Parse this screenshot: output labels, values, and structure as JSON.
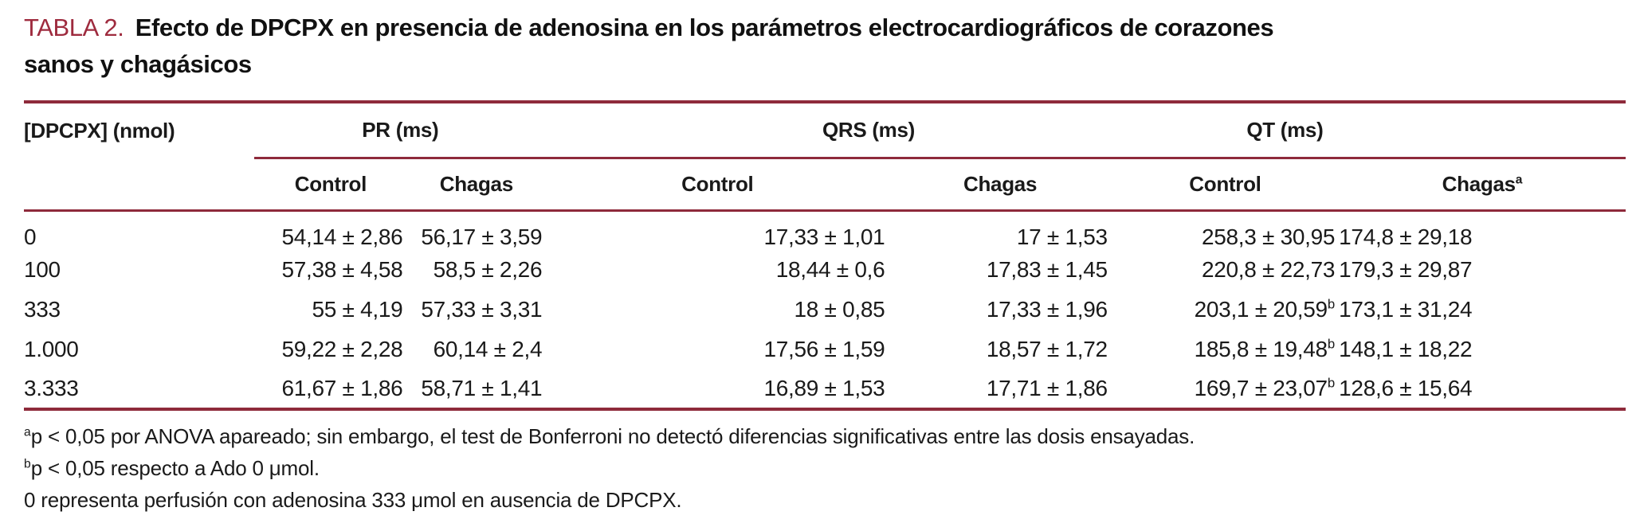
{
  "colors": {
    "accent": "#9E2B3E",
    "rule": "#8E2A3B",
    "text": "#1A1A1A",
    "background": "#FFFFFF"
  },
  "title": {
    "label": "TABLA 2.",
    "line1": "Efecto de DPCPX en presencia de adenosina en los parámetros electrocardiográficos de corazones",
    "line2": "sanos y chagásicos"
  },
  "table": {
    "col0_header": "[DPCPX] (nmol)",
    "groups": {
      "pr": "PR (ms)",
      "qrs": "QRS (ms)",
      "qt": "QT (ms)"
    },
    "subheaders": {
      "pr_control": "Control",
      "pr_chagas": "Chagas",
      "qrs_control": "Control",
      "qrs_chagas": "Chagas",
      "qt_control": "Control",
      "qt_chagas": "Chagas",
      "qt_chagas_sup": "a"
    },
    "rows": [
      {
        "dose": "0",
        "pr_c": "54,14 ± 2,86",
        "pr_ch": "56,17 ± 3,59",
        "qrs_c": "17,33 ± 1,01",
        "qrs_ch": "17 ± 1,53",
        "qt_c": "258,3 ± 30,95",
        "qt_c_sup": "",
        "qt_ch": "174,8 ± 29,18"
      },
      {
        "dose": "100",
        "pr_c": "57,38 ± 4,58",
        "pr_ch": "58,5 ± 2,26",
        "qrs_c": "18,44 ± 0,6",
        "qrs_ch": "17,83 ± 1,45",
        "qt_c": "220,8 ± 22,73",
        "qt_c_sup": "",
        "qt_ch": "179,3 ± 29,87"
      },
      {
        "dose": "333",
        "pr_c": "55 ± 4,19",
        "pr_ch": "57,33 ± 3,31",
        "qrs_c": "18 ± 0,85",
        "qrs_ch": "17,33 ± 1,96",
        "qt_c": "203,1 ± 20,59",
        "qt_c_sup": "b",
        "qt_ch": "173,1 ± 31,24"
      },
      {
        "dose": "1.000",
        "pr_c": "59,22 ± 2,28",
        "pr_ch": "60,14 ± 2,4",
        "qrs_c": "17,56 ± 1,59",
        "qrs_ch": "18,57 ± 1,72",
        "qt_c": "185,8 ± 19,48",
        "qt_c_sup": "b",
        "qt_ch": "148,1 ± 18,22"
      },
      {
        "dose": "3.333",
        "pr_c": "61,67 ± 1,86",
        "pr_ch": "58,71 ± 1,41",
        "qrs_c": "16,89 ± 1,53",
        "qrs_ch": "17,71 ± 1,86",
        "qt_c": "169,7 ± 23,07",
        "qt_c_sup": "b",
        "qt_ch": "128,6 ± 15,64"
      }
    ]
  },
  "footnotes": [
    {
      "sup": "a",
      "text": "p < 0,05 por ANOVA apareado; sin embargo, el test de Bonferroni no detectó diferencias significativas entre las dosis ensayadas."
    },
    {
      "sup": "b",
      "text": "p < 0,05 respecto a Ado 0 μmol."
    },
    {
      "sup": "",
      "text": "0 representa perfusión con adenosina 333 μmol en ausencia de DPCPX."
    }
  ]
}
